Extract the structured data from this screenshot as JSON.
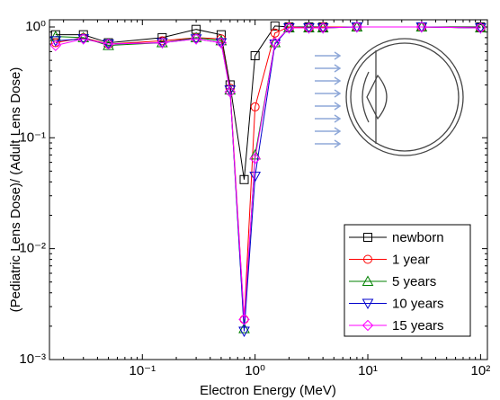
{
  "chart_data": {
    "type": "line",
    "xlabel": "Electron Energy (MeV)",
    "ylabel": "(Pediatric Lens Dose)/ (Adult Lens Dose)",
    "xscale": "log",
    "yscale": "log",
    "xlim": [
      0.015,
      115
    ],
    "ylim": [
      0.001,
      1.16
    ],
    "xticks": [
      {
        "value": 0.1,
        "label": "10⁻¹"
      },
      {
        "value": 1,
        "label": "10⁰"
      },
      {
        "value": 10,
        "label": "10¹"
      },
      {
        "value": 100,
        "label": "10²"
      }
    ],
    "yticks": [
      {
        "value": 0.001,
        "label": "10⁻³"
      },
      {
        "value": 0.01,
        "label": "10⁻²"
      },
      {
        "value": 0.1,
        "label": "10⁻¹"
      },
      {
        "value": 1,
        "label": "10⁰"
      }
    ],
    "legend": "lower right",
    "x": [
      0.017,
      0.03,
      0.05,
      0.15,
      0.3,
      0.5,
      0.6,
      0.8,
      1,
      1.5,
      2,
      3,
      4,
      8,
      30,
      100
    ],
    "series": [
      {
        "name": "newborn",
        "color": "#000000",
        "marker": "square",
        "values": [
          0.85,
          0.85,
          0.72,
          0.8,
          0.95,
          0.85,
          0.3,
          0.042,
          0.55,
          1.02,
          1.0,
          1.0,
          1.0,
          1.0,
          1.0,
          1.0
        ]
      },
      {
        "name": "1 year",
        "color": "#ff0000",
        "marker": "circle",
        "values": [
          0.72,
          0.8,
          0.7,
          0.75,
          0.8,
          0.78,
          0.28,
          0.0023,
          0.19,
          0.88,
          1.0,
          0.98,
          1.0,
          1.0,
          1.0,
          0.98
        ]
      },
      {
        "name": "5 years",
        "color": "#008000",
        "marker": "triangle-up",
        "values": [
          0.82,
          0.8,
          0.68,
          0.72,
          0.8,
          0.75,
          0.27,
          0.0019,
          0.07,
          0.72,
          0.98,
          0.98,
          0.98,
          1.0,
          1.0,
          0.98
        ]
      },
      {
        "name": "10 years",
        "color": "#0000cc",
        "marker": "triangle-down",
        "values": [
          0.75,
          0.78,
          0.7,
          0.72,
          0.78,
          0.72,
          0.27,
          0.0018,
          0.045,
          0.7,
          0.98,
          0.98,
          0.98,
          1.0,
          1.0,
          0.98
        ]
      },
      {
        "name": "15 years",
        "color": "#ff00ff",
        "marker": "diamond",
        "values": [
          0.68,
          0.78,
          0.7,
          0.72,
          0.78,
          0.72,
          0.26,
          0.0023,
          0.065,
          0.72,
          0.98,
          0.98,
          0.98,
          1.0,
          1.0,
          0.98
        ]
      }
    ]
  }
}
